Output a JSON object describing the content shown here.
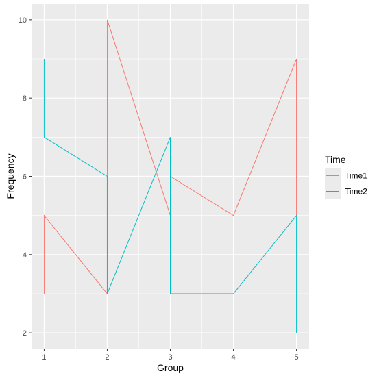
{
  "chart_data": {
    "type": "line",
    "xlabel": "Group",
    "ylabel": "Frequency",
    "xlim": [
      0.8,
      5.2
    ],
    "ylim": [
      1.6,
      10.4
    ],
    "x_ticks": [
      1,
      2,
      3,
      4,
      5
    ],
    "y_ticks": [
      2,
      4,
      6,
      8,
      10
    ],
    "grid": true,
    "legend": {
      "title": "Time",
      "placement": "right"
    },
    "series": [
      {
        "name": "Time1",
        "color": "#F8766D",
        "x": [
          1,
          1,
          2,
          2,
          3,
          3,
          4,
          5,
          5
        ],
        "y": [
          3,
          5,
          3,
          10,
          5,
          6,
          5,
          9,
          5
        ]
      },
      {
        "name": "Time2",
        "color": "#00BFC4",
        "x": [
          1,
          1,
          2,
          2,
          3,
          3,
          4,
          5,
          5
        ],
        "y": [
          9,
          7,
          6,
          3,
          7,
          3,
          3,
          5,
          2
        ]
      }
    ],
    "panel_background": "#EBEBEB",
    "grid_color": "#FFFFFF"
  }
}
